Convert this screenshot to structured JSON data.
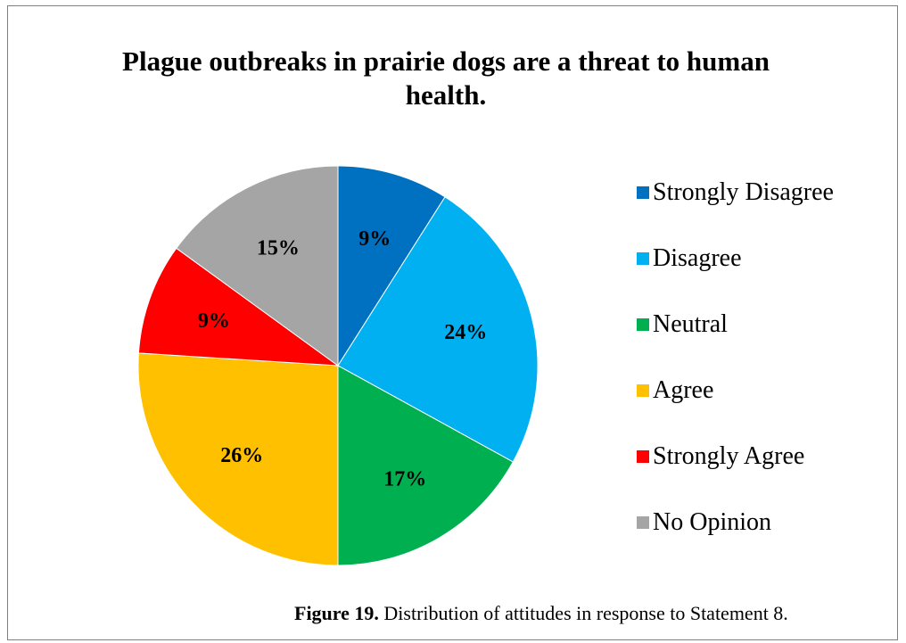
{
  "chart_data": {
    "type": "pie",
    "title": "Plague outbreaks in prairie dogs are a threat to human health.",
    "categories": [
      "Strongly Disagree",
      "Disagree",
      "Neutral",
      "Agree",
      "Strongly Agree",
      "No Opinion"
    ],
    "values": [
      9,
      24,
      17,
      26,
      9,
      15
    ],
    "data_labels": [
      "9%",
      "24%",
      "17%",
      "26%",
      "9%",
      "15%"
    ],
    "colors": [
      "#0070c0",
      "#00b0f0",
      "#00b050",
      "#ffc000",
      "#ff0000",
      "#a5a5a5"
    ],
    "legend_position": "right"
  },
  "caption": {
    "label": "Figure 19.",
    "text": "Distribution of attitudes in response to Statement 8."
  }
}
